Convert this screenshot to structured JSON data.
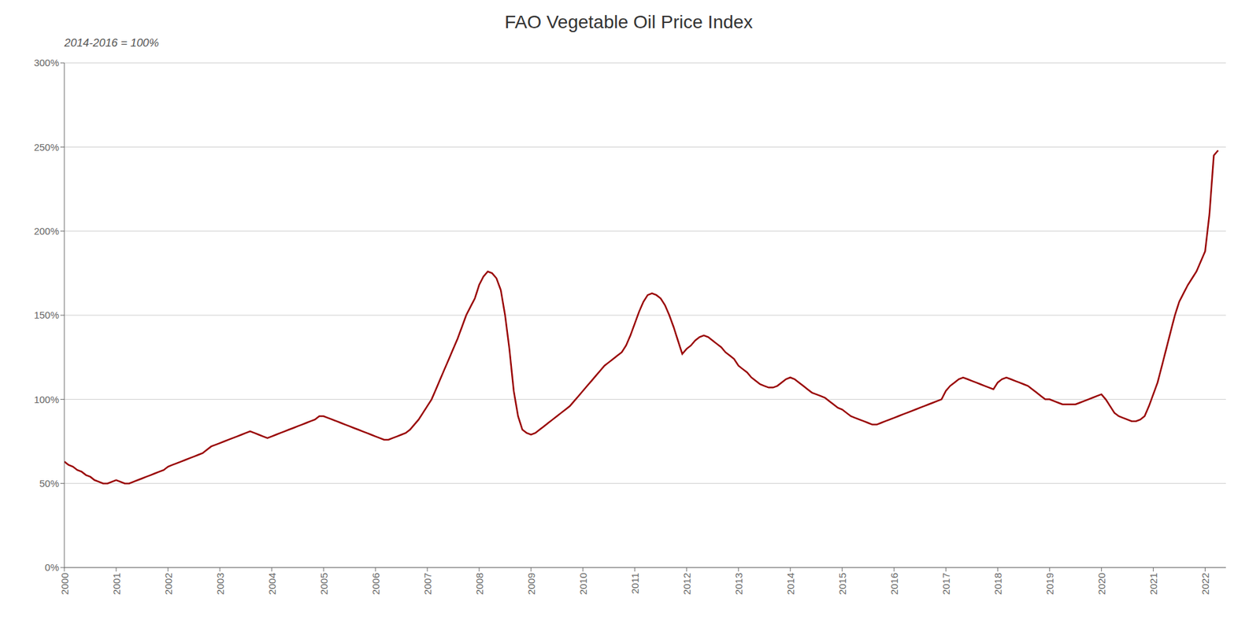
{
  "chart_data": {
    "type": "line",
    "title": "FAO Vegetable Oil Price Index",
    "subtitle": "2014-2016 = 100%",
    "color": "#990000",
    "grid": true,
    "xlim": [
      2000,
      2022.4
    ],
    "xticks": [
      2000,
      2001,
      2002,
      2003,
      2004,
      2005,
      2006,
      2007,
      2008,
      2009,
      2010,
      2011,
      2012,
      2013,
      2014,
      2015,
      2016,
      2017,
      2018,
      2019,
      2020,
      2021,
      2022
    ],
    "ylim": [
      0,
      300
    ],
    "yticks": [
      {
        "value": 0,
        "label": "0%"
      },
      {
        "value": 50,
        "label": "50%"
      },
      {
        "value": 100,
        "label": "100%"
      },
      {
        "value": 150,
        "label": "150%"
      },
      {
        "value": 200,
        "label": "200%"
      },
      {
        "value": 250,
        "label": "250%"
      },
      {
        "value": 300,
        "label": "300%"
      }
    ],
    "x": [
      2000.0,
      2000.083,
      2000.167,
      2000.25,
      2000.333,
      2000.417,
      2000.5,
      2000.583,
      2000.667,
      2000.75,
      2000.833,
      2000.917,
      2001.0,
      2001.083,
      2001.167,
      2001.25,
      2001.333,
      2001.417,
      2001.5,
      2001.583,
      2001.667,
      2001.75,
      2001.833,
      2001.917,
      2002.0,
      2002.083,
      2002.167,
      2002.25,
      2002.333,
      2002.417,
      2002.5,
      2002.583,
      2002.667,
      2002.75,
      2002.833,
      2002.917,
      2003.0,
      2003.083,
      2003.167,
      2003.25,
      2003.333,
      2003.417,
      2003.5,
      2003.583,
      2003.667,
      2003.75,
      2003.833,
      2003.917,
      2004.0,
      2004.083,
      2004.167,
      2004.25,
      2004.333,
      2004.417,
      2004.5,
      2004.583,
      2004.667,
      2004.75,
      2004.833,
      2004.917,
      2005.0,
      2005.083,
      2005.167,
      2005.25,
      2005.333,
      2005.417,
      2005.5,
      2005.583,
      2005.667,
      2005.75,
      2005.833,
      2005.917,
      2006.0,
      2006.083,
      2006.167,
      2006.25,
      2006.333,
      2006.417,
      2006.5,
      2006.583,
      2006.667,
      2006.75,
      2006.833,
      2006.917,
      2007.0,
      2007.083,
      2007.167,
      2007.25,
      2007.333,
      2007.417,
      2007.5,
      2007.583,
      2007.667,
      2007.75,
      2007.833,
      2007.917,
      2008.0,
      2008.083,
      2008.167,
      2008.25,
      2008.333,
      2008.417,
      2008.5,
      2008.583,
      2008.667,
      2008.75,
      2008.833,
      2008.917,
      2009.0,
      2009.083,
      2009.167,
      2009.25,
      2009.333,
      2009.417,
      2009.5,
      2009.583,
      2009.667,
      2009.75,
      2009.833,
      2009.917,
      2010.0,
      2010.083,
      2010.167,
      2010.25,
      2010.333,
      2010.417,
      2010.5,
      2010.583,
      2010.667,
      2010.75,
      2010.833,
      2010.917,
      2011.0,
      2011.083,
      2011.167,
      2011.25,
      2011.333,
      2011.417,
      2011.5,
      2011.583,
      2011.667,
      2011.75,
      2011.833,
      2011.917,
      2012.0,
      2012.083,
      2012.167,
      2012.25,
      2012.333,
      2012.417,
      2012.5,
      2012.583,
      2012.667,
      2012.75,
      2012.833,
      2012.917,
      2013.0,
      2013.083,
      2013.167,
      2013.25,
      2013.333,
      2013.417,
      2013.5,
      2013.583,
      2013.667,
      2013.75,
      2013.833,
      2013.917,
      2014.0,
      2014.083,
      2014.167,
      2014.25,
      2014.333,
      2014.417,
      2014.5,
      2014.583,
      2014.667,
      2014.75,
      2014.833,
      2014.917,
      2015.0,
      2015.083,
      2015.167,
      2015.25,
      2015.333,
      2015.417,
      2015.5,
      2015.583,
      2015.667,
      2015.75,
      2015.833,
      2015.917,
      2016.0,
      2016.083,
      2016.167,
      2016.25,
      2016.333,
      2016.417,
      2016.5,
      2016.583,
      2016.667,
      2016.75,
      2016.833,
      2016.917,
      2017.0,
      2017.083,
      2017.167,
      2017.25,
      2017.333,
      2017.417,
      2017.5,
      2017.583,
      2017.667,
      2017.75,
      2017.833,
      2017.917,
      2018.0,
      2018.083,
      2018.167,
      2018.25,
      2018.333,
      2018.417,
      2018.5,
      2018.583,
      2018.667,
      2018.75,
      2018.833,
      2018.917,
      2019.0,
      2019.083,
      2019.167,
      2019.25,
      2019.333,
      2019.417,
      2019.5,
      2019.583,
      2019.667,
      2019.75,
      2019.833,
      2019.917,
      2020.0,
      2020.083,
      2020.167,
      2020.25,
      2020.333,
      2020.417,
      2020.5,
      2020.583,
      2020.667,
      2020.75,
      2020.833,
      2020.917,
      2021.0,
      2021.083,
      2021.167,
      2021.25,
      2021.333,
      2021.417,
      2021.5,
      2021.583,
      2021.667,
      2021.75,
      2021.833,
      2021.917,
      2022.0,
      2022.083,
      2022.167,
      2022.25
    ],
    "values": [
      63,
      61,
      60,
      58,
      57,
      55,
      54,
      52,
      51,
      50,
      50,
      51,
      52,
      51,
      50,
      50,
      51,
      52,
      53,
      54,
      55,
      56,
      57,
      58,
      60,
      61,
      62,
      63,
      64,
      65,
      66,
      67,
      68,
      70,
      72,
      73,
      74,
      75,
      76,
      77,
      78,
      79,
      80,
      81,
      80,
      79,
      78,
      77,
      78,
      79,
      80,
      81,
      82,
      83,
      84,
      85,
      86,
      87,
      88,
      90,
      90,
      89,
      88,
      87,
      86,
      85,
      84,
      83,
      82,
      81,
      80,
      79,
      78,
      77,
      76,
      76,
      77,
      78,
      79,
      80,
      82,
      85,
      88,
      92,
      96,
      100,
      106,
      112,
      118,
      124,
      130,
      136,
      143,
      150,
      155,
      160,
      168,
      173,
      176,
      175,
      172,
      165,
      150,
      130,
      105,
      90,
      82,
      80,
      79,
      80,
      82,
      84,
      86,
      88,
      90,
      92,
      94,
      96,
      99,
      102,
      105,
      108,
      111,
      114,
      117,
      120,
      122,
      124,
      126,
      128,
      132,
      138,
      145,
      152,
      158,
      162,
      163,
      162,
      160,
      156,
      150,
      143,
      135,
      127,
      130,
      132,
      135,
      137,
      138,
      137,
      135,
      133,
      131,
      128,
      126,
      124,
      120,
      118,
      116,
      113,
      111,
      109,
      108,
      107,
      107,
      108,
      110,
      112,
      113,
      112,
      110,
      108,
      106,
      104,
      103,
      102,
      101,
      99,
      97,
      95,
      94,
      92,
      90,
      89,
      88,
      87,
      86,
      85,
      85,
      86,
      87,
      88,
      89,
      90,
      91,
      92,
      93,
      94,
      95,
      96,
      97,
      98,
      99,
      100,
      105,
      108,
      110,
      112,
      113,
      112,
      111,
      110,
      109,
      108,
      107,
      106,
      110,
      112,
      113,
      112,
      111,
      110,
      109,
      108,
      106,
      104,
      102,
      100,
      100,
      99,
      98,
      97,
      97,
      97,
      97,
      98,
      99,
      100,
      101,
      102,
      103,
      100,
      96,
      92,
      90,
      89,
      88,
      87,
      87,
      88,
      90,
      96,
      103,
      110,
      120,
      130,
      140,
      150,
      158,
      163,
      168,
      172,
      176,
      182,
      188,
      210,
      245,
      248
    ]
  }
}
